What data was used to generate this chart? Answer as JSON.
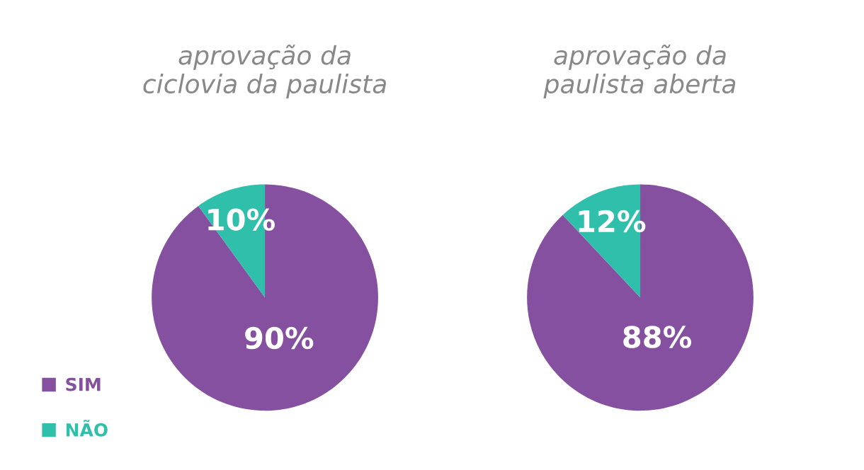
{
  "chart_data": [
    {
      "type": "pie",
      "title": "aprovação da\nciclovia da paulista",
      "categories": [
        "SIM",
        "NÃO"
      ],
      "values": [
        90,
        10
      ],
      "colors": [
        "#8650a0",
        "#2fbfaa"
      ],
      "value_labels": [
        "90%",
        "10%"
      ],
      "legend": "bottom left"
    },
    {
      "type": "pie",
      "title": "aprovação da\npaulista aberta",
      "categories": [
        null,
        null
      ],
      "values": [
        88,
        12
      ],
      "colors": [
        "#8650a0",
        "#2fbfaa"
      ],
      "value_labels": [
        "88%",
        "12%"
      ]
    }
  ]
}
